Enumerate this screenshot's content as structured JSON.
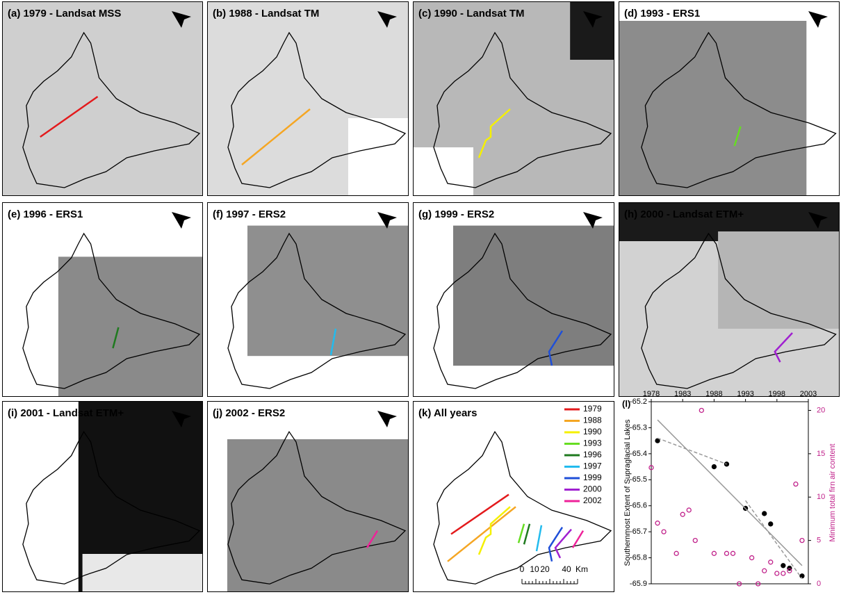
{
  "panels": [
    {
      "label": "(a) 1979 - Landsat MSS"
    },
    {
      "label": "(b) 1988 - Landsat TM"
    },
    {
      "label": "(c) 1990 - Landsat TM"
    },
    {
      "label": "(d) 1993 - ERS1"
    },
    {
      "label": "(e) 1996 - ERS1"
    },
    {
      "label": "(f) 1997 - ERS2"
    },
    {
      "label": "(g) 1999 - ERS2"
    },
    {
      "label": "(h) 2000 - Landsat ETM+"
    },
    {
      "label": "(i) 2001 - Landsat ETM+"
    },
    {
      "label": "(j) 2002 - ERS2"
    },
    {
      "label": "(k) All years"
    }
  ],
  "legend": [
    {
      "name": "1979",
      "color": "#e31a1c"
    },
    {
      "name": "1988",
      "color": "#f5a623"
    },
    {
      "name": "1990",
      "color": "#f5f000"
    },
    {
      "name": "1993",
      "color": "#66dd22"
    },
    {
      "name": "1996",
      "color": "#1f7a1f"
    },
    {
      "name": "1997",
      "color": "#22bbee"
    },
    {
      "name": "1999",
      "color": "#1f4fd8"
    },
    {
      "name": "2000",
      "color": "#a020d0"
    },
    {
      "name": "2002",
      "color": "#ee2299"
    }
  ],
  "scale_bar": [
    "0",
    "10",
    "20",
    "40",
    "Km"
  ],
  "chart_data": {
    "type": "scatter",
    "panel_label": "(l)",
    "ylabel": "Southernmost Extent of Supraglacial Lakes",
    "y2label": "Minimum total firn air content",
    "xlim": [
      1978,
      2003
    ],
    "xticks": [
      1978,
      1983,
      1988,
      1993,
      1998,
      2003
    ],
    "ylim": [
      -65.9,
      -65.2
    ],
    "yticks": [
      -65.2,
      -65.3,
      -65.4,
      -65.5,
      -65.6,
      -65.7,
      -65.8,
      -65.9
    ],
    "y2lim": [
      0,
      21
    ],
    "y2ticks": [
      0,
      5,
      10,
      15,
      20
    ],
    "series": [
      {
        "style": "dot",
        "color": "#000000",
        "x": [
          1979,
          1988,
          1990,
          1993,
          1996,
          1997,
          1999,
          2000,
          2002
        ],
        "values": [
          -65.35,
          -65.45,
          -65.44,
          -65.61,
          -65.63,
          -65.67,
          -65.83,
          -65.84,
          -65.87
        ]
      },
      {
        "style": "ring",
        "color": "#c0208a",
        "axis": "y2",
        "x": [
          1978,
          1979,
          1980,
          1982,
          1983,
          1984,
          1985,
          1986,
          1988,
          1990,
          1991,
          1992,
          1994,
          1995,
          1996,
          1997,
          1998,
          1999,
          2000,
          2001,
          2002
        ],
        "values": [
          13.4,
          7,
          6,
          3.5,
          8,
          8.5,
          5,
          20,
          3.5,
          3.5,
          3.5,
          0,
          3,
          0,
          1.5,
          2.5,
          1.2,
          1.2,
          1.5,
          11.5,
          5
        ]
      },
      {
        "style": "solid",
        "color": "#999999",
        "x": [
          1979,
          2002
        ],
        "values": [
          -65.27,
          -65.83
        ]
      },
      {
        "style": "dashed",
        "color": "#999999",
        "x": [
          1979,
          1990
        ],
        "values": [
          -65.34,
          -65.44
        ]
      },
      {
        "style": "dashed",
        "color": "#999999",
        "x": [
          1993,
          2002
        ],
        "values": [
          -65.58,
          -65.88
        ]
      }
    ]
  }
}
